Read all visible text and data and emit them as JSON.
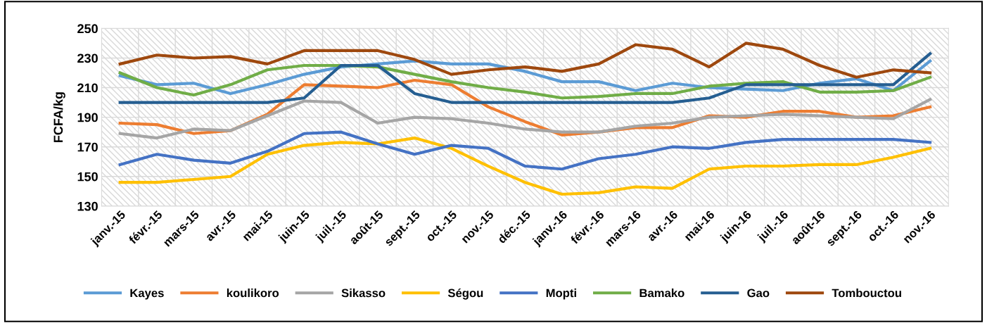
{
  "chart_data": {
    "type": "line",
    "ylabel": "FCFA/kg",
    "categories": [
      "janv.-15",
      "févr.-15",
      "mars-15",
      "avr.-15",
      "mai-15",
      "juin-15",
      "juil.-15",
      "août-15",
      "sept.-15",
      "oct.-15",
      "nov.-15",
      "déc.-15",
      "janv.-16",
      "févr.-16",
      "mars-16",
      "avr.-16",
      "mai-16",
      "juin-16",
      "juil.-16",
      "août-16",
      "sept.-16",
      "oct.-16",
      "nov.-16"
    ],
    "series": [
      {
        "name": "Kayes",
        "color": "#5b9bd5",
        "values": [
          218,
          212,
          213,
          206,
          212,
          219,
          224,
          226,
          228,
          226,
          226,
          221,
          214,
          214,
          208,
          213,
          210,
          209,
          208,
          213,
          216,
          208,
          228
        ]
      },
      {
        "name": "koulikoro",
        "color": "#ed7d31",
        "values": [
          186,
          185,
          179,
          181,
          192,
          212,
          211,
          210,
          215,
          212,
          197,
          187,
          178,
          180,
          183,
          183,
          191,
          190,
          194,
          194,
          190,
          191,
          197
        ]
      },
      {
        "name": "Sikasso",
        "color": "#a5a5a5",
        "values": [
          179,
          176,
          182,
          181,
          191,
          201,
          200,
          186,
          190,
          189,
          186,
          182,
          180,
          180,
          184,
          186,
          190,
          191,
          192,
          191,
          190,
          189,
          202
        ]
      },
      {
        "name": "Ségou",
        "color": "#ffc000",
        "values": [
          146,
          146,
          148,
          150,
          165,
          171,
          173,
          172,
          176,
          169,
          157,
          146,
          138,
          139,
          143,
          142,
          155,
          157,
          157,
          158,
          158,
          163,
          169
        ]
      },
      {
        "name": "Mopti",
        "color": "#4472c4",
        "values": [
          158,
          165,
          161,
          159,
          167,
          179,
          180,
          172,
          165,
          171,
          169,
          157,
          155,
          162,
          165,
          170,
          169,
          173,
          175,
          175,
          175,
          175,
          173
        ]
      },
      {
        "name": "Bamako",
        "color": "#70ad47",
        "values": [
          220,
          210,
          205,
          212,
          222,
          225,
          225,
          224,
          219,
          214,
          210,
          207,
          203,
          204,
          206,
          206,
          211,
          213,
          214,
          207,
          207,
          208,
          217
        ]
      },
      {
        "name": "Gao",
        "color": "#255e91",
        "values": [
          200,
          200,
          200,
          200,
          200,
          203,
          225,
          225,
          206,
          200,
          200,
          200,
          200,
          200,
          200,
          200,
          203,
          212,
          212,
          212,
          212,
          212,
          233
        ]
      },
      {
        "name": "Tombouctou",
        "color": "#9e480e",
        "values": [
          226,
          232,
          230,
          231,
          226,
          235,
          235,
          235,
          229,
          219,
          222,
          224,
          221,
          226,
          239,
          236,
          224,
          240,
          236,
          225,
          217,
          222,
          220
        ]
      }
    ],
    "ylim": [
      130,
      250
    ],
    "yticks": [
      130,
      150,
      170,
      190,
      210,
      230,
      250
    ],
    "grid": true,
    "legend": "bottom",
    "marker": "none",
    "line_style": "solid"
  }
}
